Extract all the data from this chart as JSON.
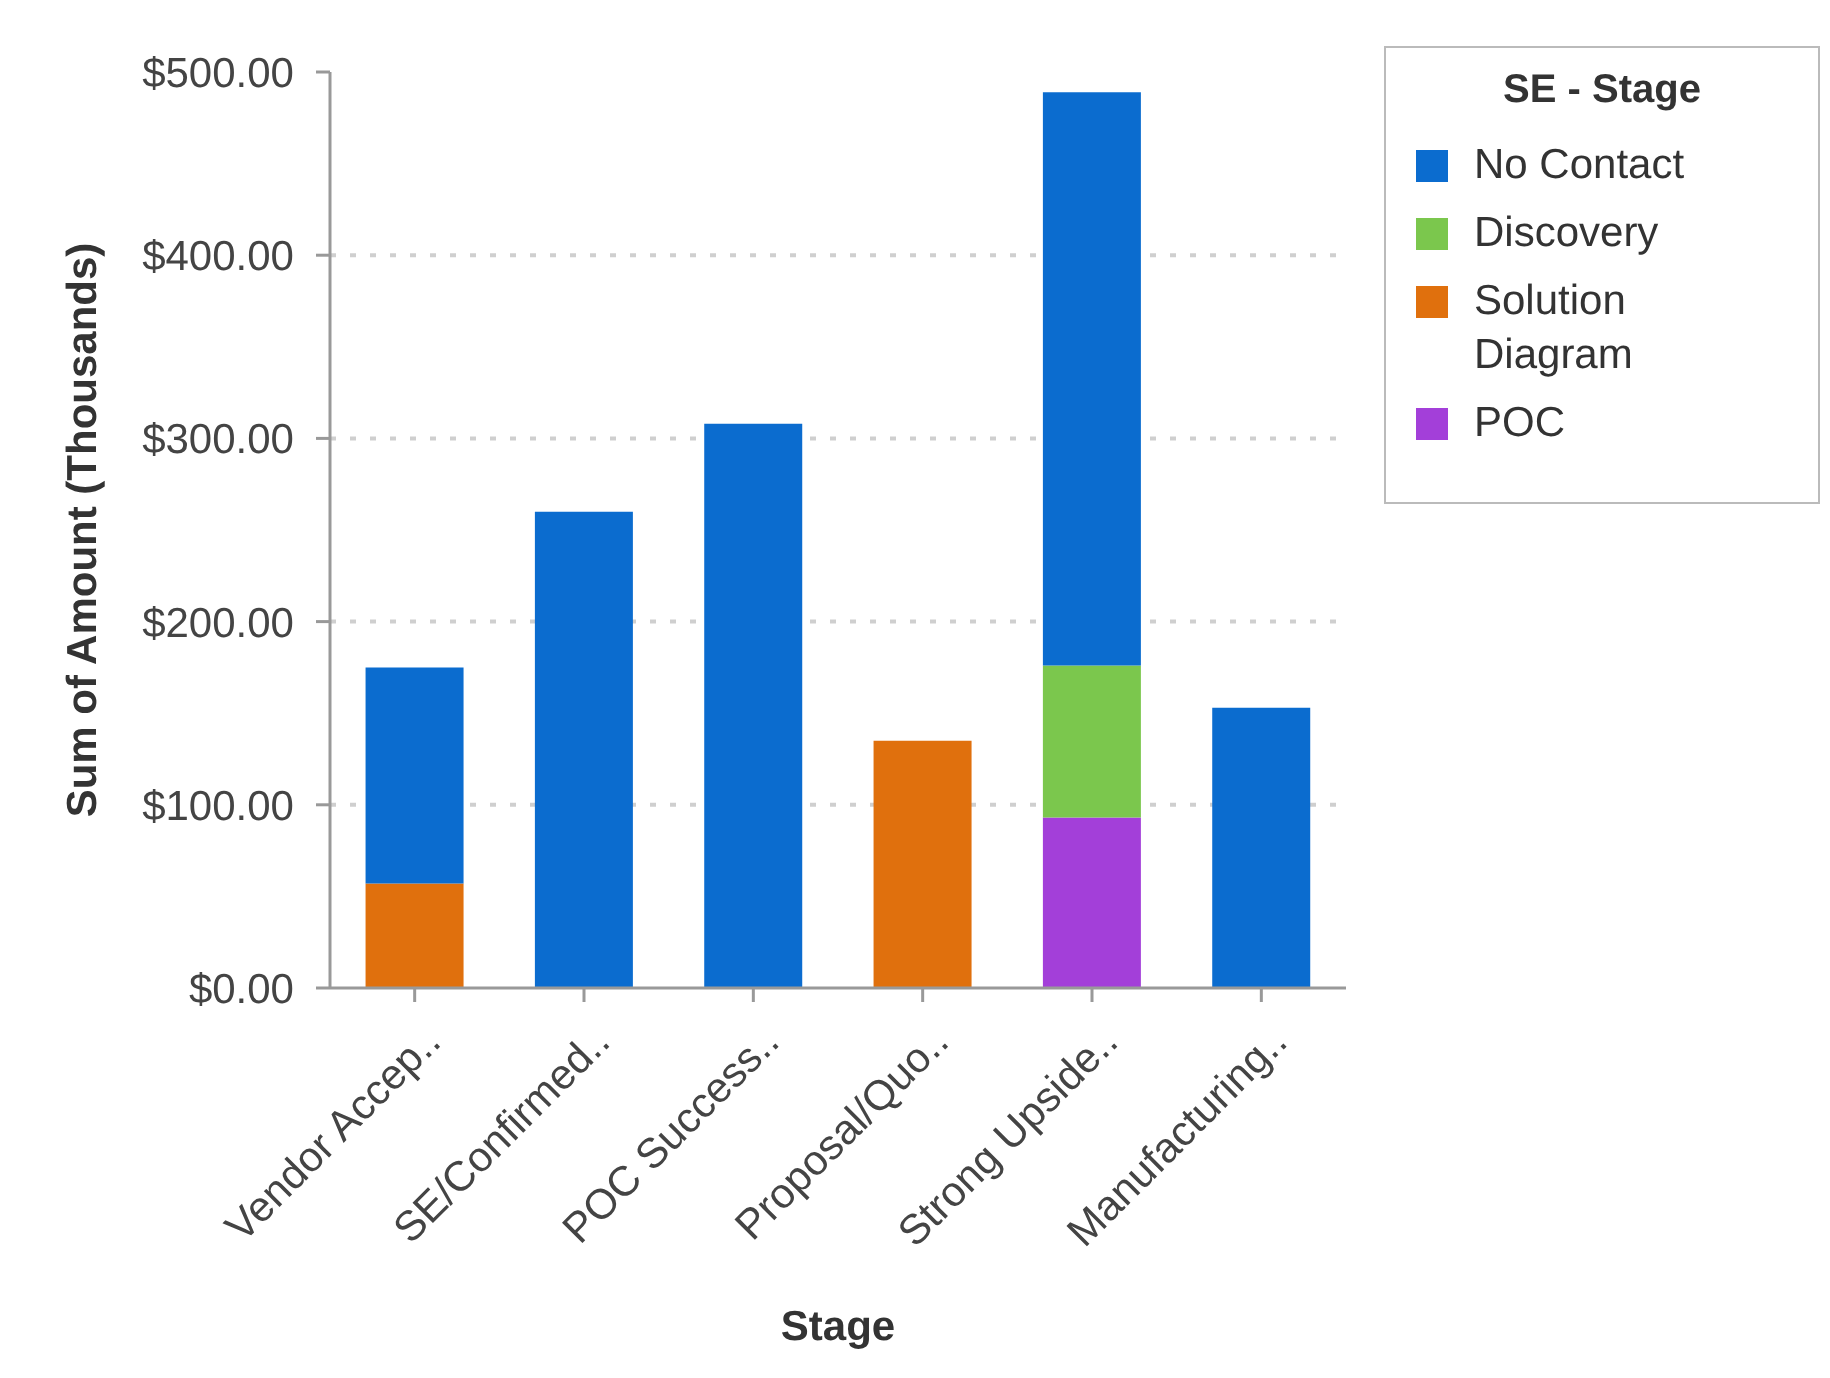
{
  "chart_data": {
    "type": "bar",
    "stacked": true,
    "xlabel": "Stage",
    "ylabel": "Sum of Amount (Thousands)",
    "legend_title": "SE - Stage",
    "legend": "top right",
    "grid": "y",
    "categories": [
      "Vendor Accep..",
      "SE/Confirmed..",
      "POC Success..",
      "Proposal/Quo..",
      "Strong Upside..",
      "Manufacturing.."
    ],
    "series": [
      {
        "name": "POC",
        "color": "#a33fd9",
        "values": [
          null,
          null,
          null,
          null,
          93,
          null
        ]
      },
      {
        "name": "Solution Diagram",
        "color": "#e0700d",
        "values": [
          57,
          null,
          null,
          135,
          null,
          null
        ]
      },
      {
        "name": "Discovery",
        "color": "#7bc74d",
        "values": [
          null,
          null,
          null,
          null,
          83,
          null
        ]
      },
      {
        "name": "No Contact",
        "color": "#0b6ccf",
        "values": [
          118,
          260,
          308,
          null,
          313,
          153
        ]
      }
    ],
    "ylim": [
      0,
      500
    ],
    "yticks": [
      {
        "value": 0,
        "label": "$0.00"
      },
      {
        "value": 100,
        "label": "$100.00"
      },
      {
        "value": 200,
        "label": "$200.00"
      },
      {
        "value": 300,
        "label": "$300.00"
      },
      {
        "value": 400,
        "label": "$400.00"
      },
      {
        "value": 500,
        "label": "$500.00"
      }
    ]
  }
}
